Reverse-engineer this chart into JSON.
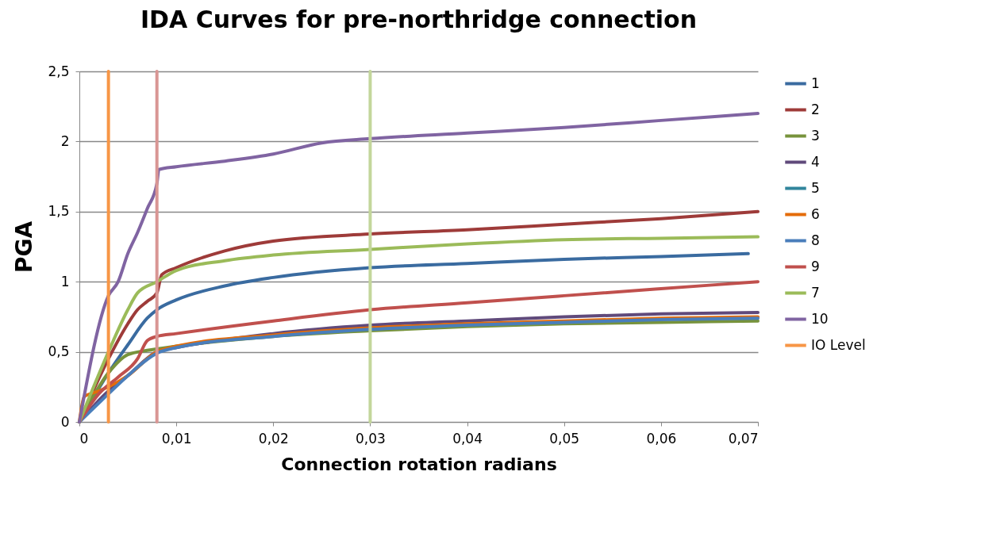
{
  "chart_data": {
    "type": "line",
    "title": "IDA Curves for pre-northridge connection",
    "xlabel": "Connection  rotation  radians",
    "ylabel": "PGA",
    "xlim": [
      0,
      0.07
    ],
    "ylim": [
      0,
      2.5
    ],
    "xticks": [
      0,
      {
        "value": 0.01,
        "label": "0,01"
      },
      {
        "value": 0.02,
        "label": "0,02"
      },
      {
        "value": 0.03,
        "label": "0,03"
      },
      {
        "value": 0.04,
        "label": "0,04"
      },
      {
        "value": 0.05,
        "label": "0,05"
      },
      {
        "value": 0.06,
        "label": "0,06"
      },
      {
        "value": 0.07,
        "label": "0,07"
      }
    ],
    "yticks": [
      0,
      {
        "value": 0.5,
        "label": "0,5"
      },
      1,
      {
        "value": 1.5,
        "label": "1,5"
      },
      2,
      {
        "value": 2.5,
        "label": "2,5"
      }
    ],
    "grid": "y",
    "legend": "right",
    "marker": "none",
    "line_style": "solid",
    "series": [
      {
        "name": "1",
        "color": "#3a6ba0",
        "x": [
          0,
          0.003,
          0.005,
          0.007,
          0.008,
          0.01,
          0.015,
          0.02,
          0.03,
          0.04,
          0.05,
          0.06,
          0.069
        ],
        "values": [
          0,
          0.35,
          0.55,
          0.74,
          0.8,
          0.87,
          0.97,
          1.03,
          1.1,
          1.13,
          1.16,
          1.18,
          1.2
        ]
      },
      {
        "name": "2",
        "color": "#9e3b39",
        "x": [
          0,
          0.003,
          0.005,
          0.006,
          0.007,
          0.008,
          0.0085,
          0.01,
          0.015,
          0.02,
          0.03,
          0.04,
          0.05,
          0.06,
          0.07
        ],
        "values": [
          0,
          0.45,
          0.7,
          0.8,
          0.86,
          0.92,
          1.05,
          1.1,
          1.22,
          1.29,
          1.34,
          1.37,
          1.41,
          1.45,
          1.5
        ]
      },
      {
        "name": "3",
        "color": "#77933c",
        "x": [
          0,
          0.003,
          0.005,
          0.007,
          0.01,
          0.02,
          0.03,
          0.04,
          0.05,
          0.06,
          0.07
        ],
        "values": [
          0,
          0.35,
          0.48,
          0.51,
          0.54,
          0.61,
          0.65,
          0.68,
          0.7,
          0.71,
          0.72
        ]
      },
      {
        "name": "4",
        "color": "#604a7b",
        "x": [
          0,
          0.003,
          0.005,
          0.008,
          0.01,
          0.02,
          0.03,
          0.04,
          0.05,
          0.06,
          0.07
        ],
        "values": [
          0,
          0.22,
          0.33,
          0.5,
          0.53,
          0.63,
          0.69,
          0.72,
          0.75,
          0.77,
          0.78
        ]
      },
      {
        "name": "5",
        "color": "#31859c"
      },
      {
        "name": "6",
        "color": "#e46c0a",
        "x": [
          0,
          0.0005,
          0.002,
          0.003,
          0.005,
          0.008,
          0.01,
          0.02,
          0.03,
          0.04,
          0.05,
          0.06,
          0.07
        ],
        "values": [
          0,
          0.18,
          0.22,
          0.25,
          0.33,
          0.5,
          0.54,
          0.62,
          0.67,
          0.7,
          0.72,
          0.74,
          0.75
        ]
      },
      {
        "name": "8",
        "color": "#4a7ebb",
        "x": [
          0,
          0.003,
          0.005,
          0.008,
          0.01,
          0.02,
          0.03,
          0.04,
          0.05,
          0.06,
          0.07
        ],
        "values": [
          0,
          0.2,
          0.33,
          0.49,
          0.53,
          0.61,
          0.66,
          0.69,
          0.71,
          0.73,
          0.74
        ]
      },
      {
        "name": "9",
        "color": "#c0504d",
        "x": [
          0,
          0.002,
          0.004,
          0.006,
          0.007,
          0.008,
          0.01,
          0.02,
          0.03,
          0.04,
          0.05,
          0.06,
          0.07
        ],
        "values": [
          0,
          0.2,
          0.32,
          0.45,
          0.58,
          0.61,
          0.63,
          0.72,
          0.8,
          0.85,
          0.9,
          0.95,
          1.0
        ]
      },
      {
        "name": "7",
        "color": "#9bbb59",
        "x": [
          0,
          0.003,
          0.005,
          0.006,
          0.008,
          0.01,
          0.015,
          0.02,
          0.03,
          0.04,
          0.05,
          0.06,
          0.07
        ],
        "values": [
          0,
          0.5,
          0.8,
          0.92,
          1.0,
          1.08,
          1.15,
          1.19,
          1.23,
          1.27,
          1.3,
          1.31,
          1.32
        ]
      },
      {
        "name": "10",
        "color": "#8064a2",
        "x": [
          0,
          0.003,
          0.004,
          0.005,
          0.006,
          0.007,
          0.008,
          0.0082,
          0.01,
          0.015,
          0.02,
          0.025,
          0.03,
          0.04,
          0.05,
          0.06,
          0.07
        ],
        "values": [
          0,
          0.9,
          1.0,
          1.2,
          1.35,
          1.52,
          1.7,
          1.8,
          1.82,
          1.86,
          1.91,
          1.99,
          2.02,
          2.06,
          2.1,
          2.15,
          2.2
        ]
      },
      {
        "name": "IO Level",
        "color": "#f79646",
        "x": [
          0.003,
          0.003
        ],
        "values": [
          0,
          2.5
        ]
      },
      {
        "color": "#d99694",
        "x": [
          0.008,
          0.008
        ],
        "values": [
          0,
          2.5
        ]
      },
      {
        "color": "#c3d69b",
        "x": [
          0.03,
          0.03
        ],
        "values": [
          0,
          2.5
        ]
      }
    ]
  }
}
